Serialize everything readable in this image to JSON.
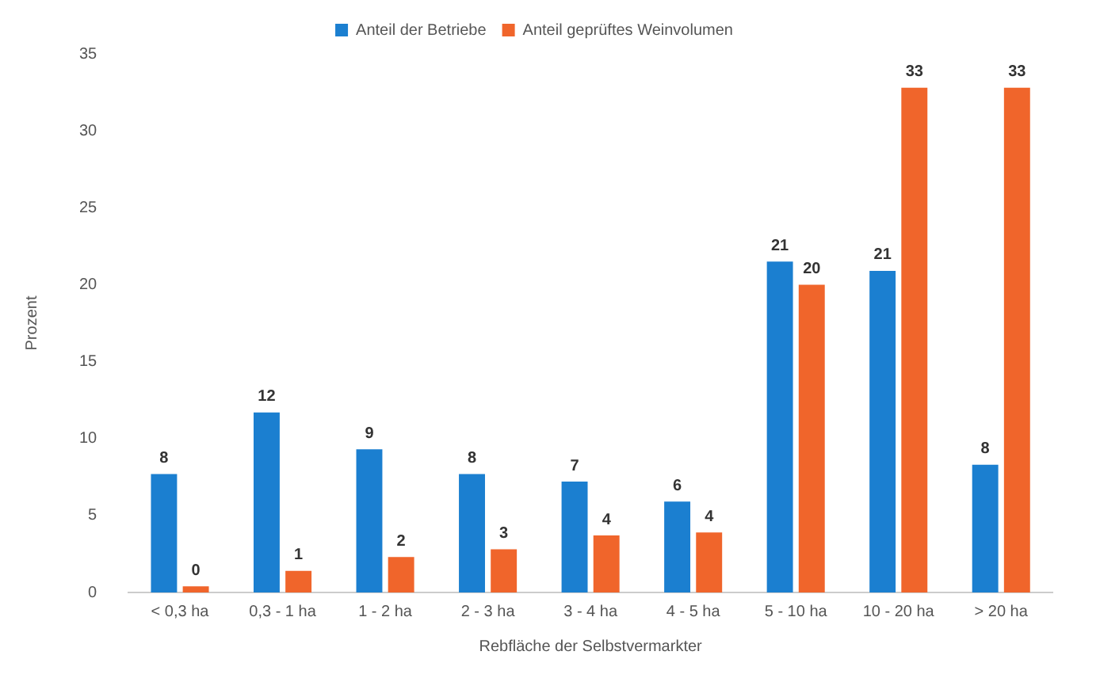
{
  "chart_data": {
    "type": "bar",
    "xlabel": "Rebfläche der Selbstvermarkter",
    "ylabel": "Prozent",
    "categories": [
      "< 0,3 ha",
      "0,3 - 1 ha",
      "1 - 2 ha",
      "2 - 3 ha",
      "3 - 4 ha",
      "4 - 5 ha",
      "5 - 10 ha",
      "10 - 20 ha",
      "> 20 ha"
    ],
    "series": [
      {
        "name": "Anteil der Betriebe",
        "color": "#1b7fd0",
        "values": [
          7.7,
          11.7,
          9.3,
          7.7,
          7.2,
          5.9,
          21.5,
          20.9,
          8.3
        ],
        "value_labels": [
          "8",
          "12",
          "9",
          "8",
          "7",
          "6",
          "21",
          "21",
          "8"
        ]
      },
      {
        "name": "Anteil geprüftes Weinvolumen",
        "color": "#f0652b",
        "values": [
          0.4,
          1.4,
          2.3,
          2.8,
          3.7,
          3.9,
          20.0,
          32.8,
          32.8
        ],
        "value_labels": [
          "0",
          "1",
          "2",
          "3",
          "4",
          "4",
          "20",
          "33",
          "33"
        ]
      }
    ],
    "ylim": [
      0,
      35
    ],
    "yticks": [
      0,
      5,
      10,
      15,
      20,
      25,
      30,
      35
    ],
    "grid": false,
    "legend": "top"
  }
}
